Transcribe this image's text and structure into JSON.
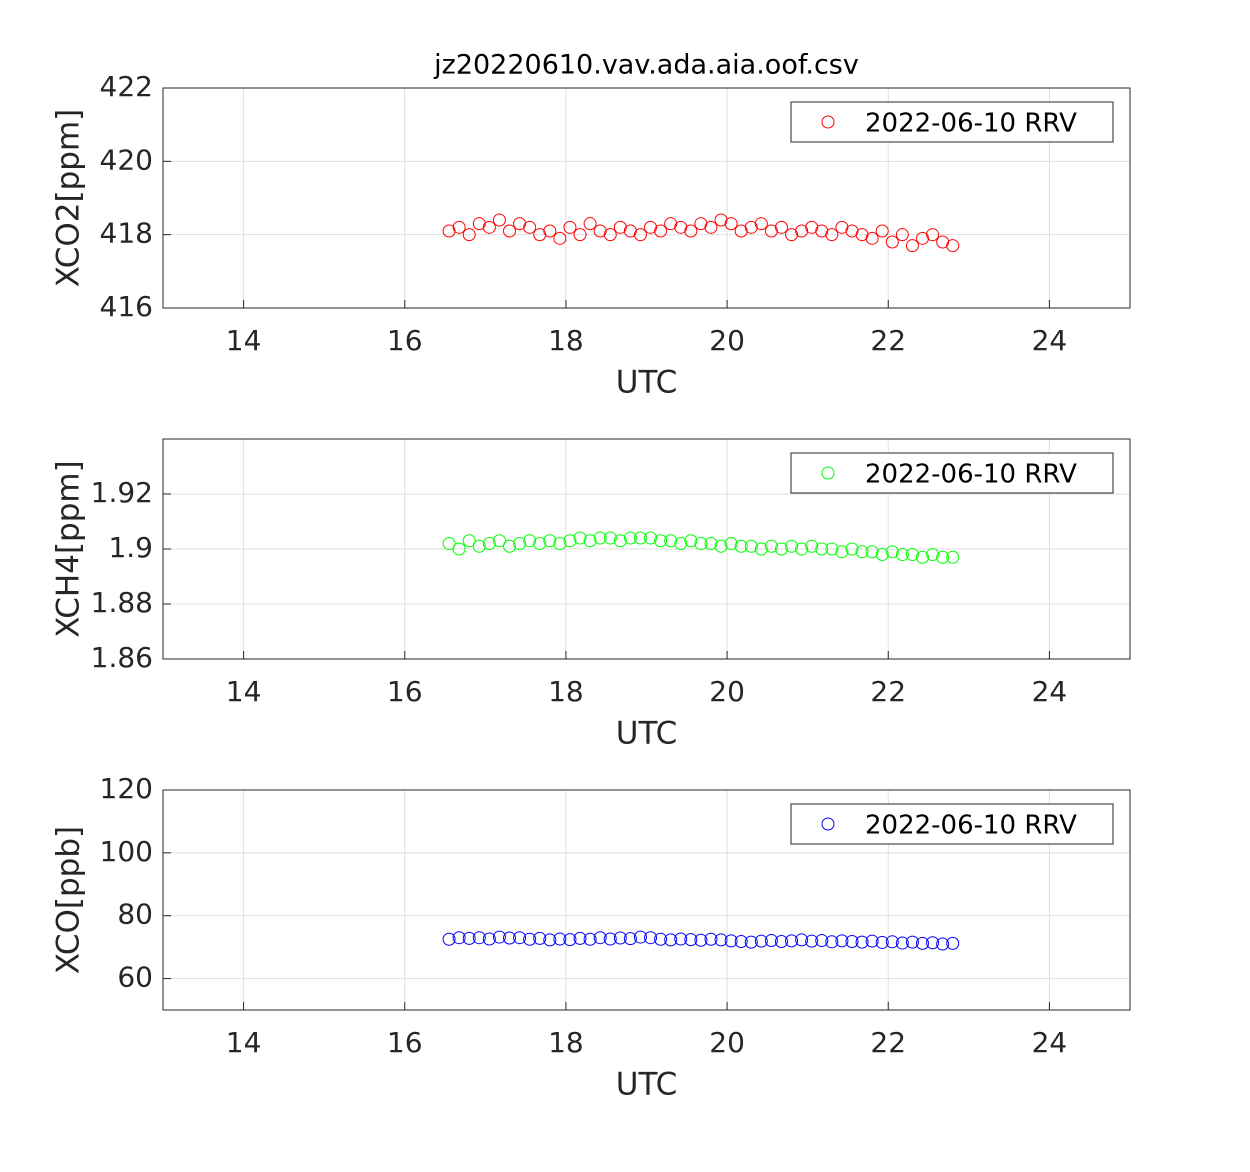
{
  "chart_data": [
    {
      "type": "scatter",
      "title": "jz20220610.vav.ada.aia.oof.csv",
      "xlabel": "UTC",
      "ylabel": "XCO2[ppm]",
      "xlim": [
        13,
        25
      ],
      "xticks": [
        14,
        16,
        18,
        20,
        22,
        24
      ],
      "ylim": [
        416,
        422
      ],
      "yticks": [
        416,
        418,
        420,
        422
      ],
      "grid": true,
      "legend": "upper right",
      "x": [
        16.55,
        16.675,
        16.8,
        16.925,
        17.05,
        17.175,
        17.3,
        17.425,
        17.55,
        17.675,
        17.8,
        17.925,
        18.05,
        18.175,
        18.3,
        18.425,
        18.55,
        18.675,
        18.8,
        18.925,
        19.05,
        19.175,
        19.3,
        19.425,
        19.55,
        19.675,
        19.8,
        19.925,
        20.05,
        20.175,
        20.3,
        20.425,
        20.55,
        20.675,
        20.8,
        20.925,
        21.05,
        21.175,
        21.3,
        21.425,
        21.55,
        21.675,
        21.8,
        21.925,
        22.05,
        22.175,
        22.3,
        22.425,
        22.55,
        22.675,
        22.8
      ],
      "series": [
        {
          "name": "2022-06-10 RRV",
          "color": "#ff0000",
          "values": [
            418.1,
            418.2,
            418.0,
            418.3,
            418.2,
            418.4,
            418.1,
            418.3,
            418.2,
            418.0,
            418.1,
            417.9,
            418.2,
            418.0,
            418.3,
            418.1,
            418.0,
            418.2,
            418.1,
            418.0,
            418.2,
            418.1,
            418.3,
            418.2,
            418.1,
            418.3,
            418.2,
            418.4,
            418.3,
            418.1,
            418.2,
            418.3,
            418.1,
            418.2,
            418.0,
            418.1,
            418.2,
            418.1,
            418.0,
            418.2,
            418.1,
            418.0,
            417.9,
            418.1,
            417.8,
            418.0,
            417.7,
            417.9,
            418.0,
            417.8,
            417.7
          ]
        }
      ]
    },
    {
      "type": "scatter",
      "xlabel": "UTC",
      "ylabel": "XCH4[ppm]",
      "xlim": [
        13,
        25
      ],
      "xticks": [
        14,
        16,
        18,
        20,
        22,
        24
      ],
      "ylim": [
        1.86,
        1.94
      ],
      "yticks": [
        1.86,
        1.88,
        1.9,
        1.92
      ],
      "grid": true,
      "legend": "upper right",
      "x": [
        16.55,
        16.675,
        16.8,
        16.925,
        17.05,
        17.175,
        17.3,
        17.425,
        17.55,
        17.675,
        17.8,
        17.925,
        18.05,
        18.175,
        18.3,
        18.425,
        18.55,
        18.675,
        18.8,
        18.925,
        19.05,
        19.175,
        19.3,
        19.425,
        19.55,
        19.675,
        19.8,
        19.925,
        20.05,
        20.175,
        20.3,
        20.425,
        20.55,
        20.675,
        20.8,
        20.925,
        21.05,
        21.175,
        21.3,
        21.425,
        21.55,
        21.675,
        21.8,
        21.925,
        22.05,
        22.175,
        22.3,
        22.425,
        22.55,
        22.675,
        22.8
      ],
      "series": [
        {
          "name": "2022-06-10 RRV",
          "color": "#00ff00",
          "values": [
            1.902,
            1.9,
            1.903,
            1.901,
            1.902,
            1.903,
            1.901,
            1.902,
            1.903,
            1.902,
            1.903,
            1.902,
            1.903,
            1.904,
            1.903,
            1.904,
            1.904,
            1.903,
            1.904,
            1.904,
            1.904,
            1.903,
            1.903,
            1.902,
            1.903,
            1.902,
            1.902,
            1.901,
            1.902,
            1.901,
            1.901,
            1.9,
            1.901,
            1.9,
            1.901,
            1.9,
            1.901,
            1.9,
            1.9,
            1.899,
            1.9,
            1.899,
            1.899,
            1.898,
            1.899,
            1.898,
            1.898,
            1.897,
            1.898,
            1.897,
            1.897
          ]
        }
      ]
    },
    {
      "type": "scatter",
      "xlabel": "UTC",
      "ylabel": "XCO[ppb]",
      "xlim": [
        13,
        25
      ],
      "xticks": [
        14,
        16,
        18,
        20,
        22,
        24
      ],
      "ylim": [
        50,
        120
      ],
      "yticks": [
        60,
        80,
        100,
        120
      ],
      "grid": true,
      "legend": "upper right",
      "x": [
        16.55,
        16.675,
        16.8,
        16.925,
        17.05,
        17.175,
        17.3,
        17.425,
        17.55,
        17.675,
        17.8,
        17.925,
        18.05,
        18.175,
        18.3,
        18.425,
        18.55,
        18.675,
        18.8,
        18.925,
        19.05,
        19.175,
        19.3,
        19.425,
        19.55,
        19.675,
        19.8,
        19.925,
        20.05,
        20.175,
        20.3,
        20.425,
        20.55,
        20.675,
        20.8,
        20.925,
        21.05,
        21.175,
        21.3,
        21.425,
        21.55,
        21.675,
        21.8,
        21.925,
        22.05,
        22.175,
        22.3,
        22.425,
        22.55,
        22.675,
        22.8
      ],
      "series": [
        {
          "name": "2022-06-10 RRV",
          "color": "#0000ff",
          "values": [
            72.5,
            73,
            72.8,
            73,
            72.6,
            73.2,
            72.9,
            73,
            72.5,
            72.8,
            72.3,
            72.6,
            72.4,
            72.8,
            72.5,
            73,
            72.6,
            72.9,
            72.7,
            73.2,
            73,
            72.5,
            72.3,
            72.6,
            72.4,
            72.2,
            72.5,
            72.3,
            72,
            71.8,
            71.6,
            71.9,
            72.1,
            71.8,
            72,
            72.3,
            71.9,
            72.1,
            71.7,
            72,
            71.8,
            71.6,
            71.9,
            71.5,
            71.7,
            71.3,
            71.6,
            71.2,
            71.4,
            71,
            71.2
          ]
        }
      ]
    }
  ]
}
